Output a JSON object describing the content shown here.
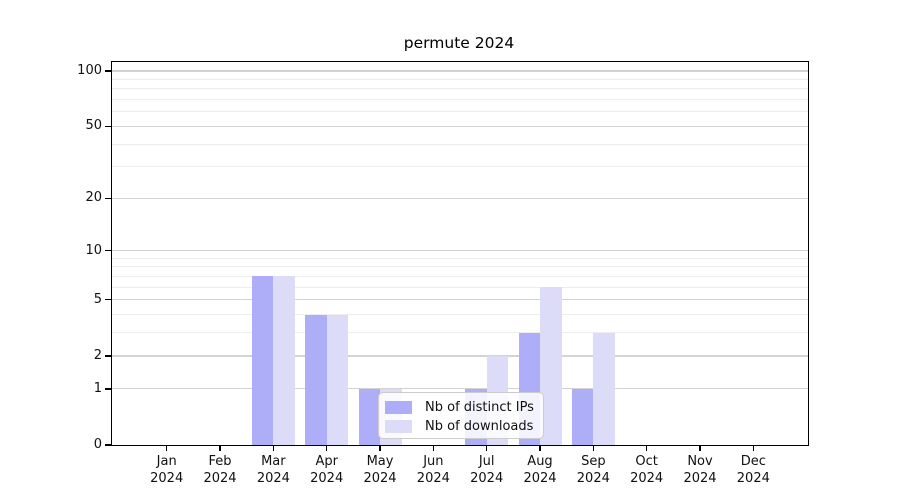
{
  "title": "permute 2024",
  "chart_data": {
    "type": "bar",
    "title": "permute 2024",
    "x_categories": [
      "Jan",
      "Feb",
      "Mar",
      "Apr",
      "May",
      "Jun",
      "Jul",
      "Aug",
      "Sep",
      "Oct",
      "Nov",
      "Dec"
    ],
    "x_year": "2024",
    "series": [
      {
        "name": "Nb of distinct IPs",
        "color": "#aeadf8",
        "values": [
          0,
          0,
          7,
          4,
          1,
          0,
          1,
          3,
          1,
          0,
          0,
          0
        ]
      },
      {
        "name": "Nb of downloads",
        "color": "#dcdcf8",
        "values": [
          0,
          0,
          7,
          4,
          1,
          0,
          2,
          6,
          3,
          0,
          0,
          0
        ]
      }
    ],
    "y_axis": {
      "scale": "log1p",
      "ticks": [
        0,
        1,
        2,
        5,
        10,
        20,
        50,
        100
      ],
      "tick_labels": [
        "0",
        "1",
        "2",
        "5",
        "10",
        "20",
        "50",
        "100"
      ],
      "minor_gridlines": [
        3,
        4,
        6,
        7,
        8,
        9,
        30,
        40,
        60,
        70,
        80,
        90
      ],
      "ymax": 113
    },
    "legend": {
      "position": "lower center",
      "labels": [
        "Nb of distinct IPs",
        "Nb of downloads"
      ]
    },
    "grid": true
  },
  "colors": {
    "bar_ips": "#aeadf8",
    "bar_downloads": "#dcdcf8",
    "grid_major": "#d3d3d3",
    "grid_minor": "#ededed",
    "axis": "#000000",
    "text": "#111111",
    "legend_border": "#cccccc"
  }
}
